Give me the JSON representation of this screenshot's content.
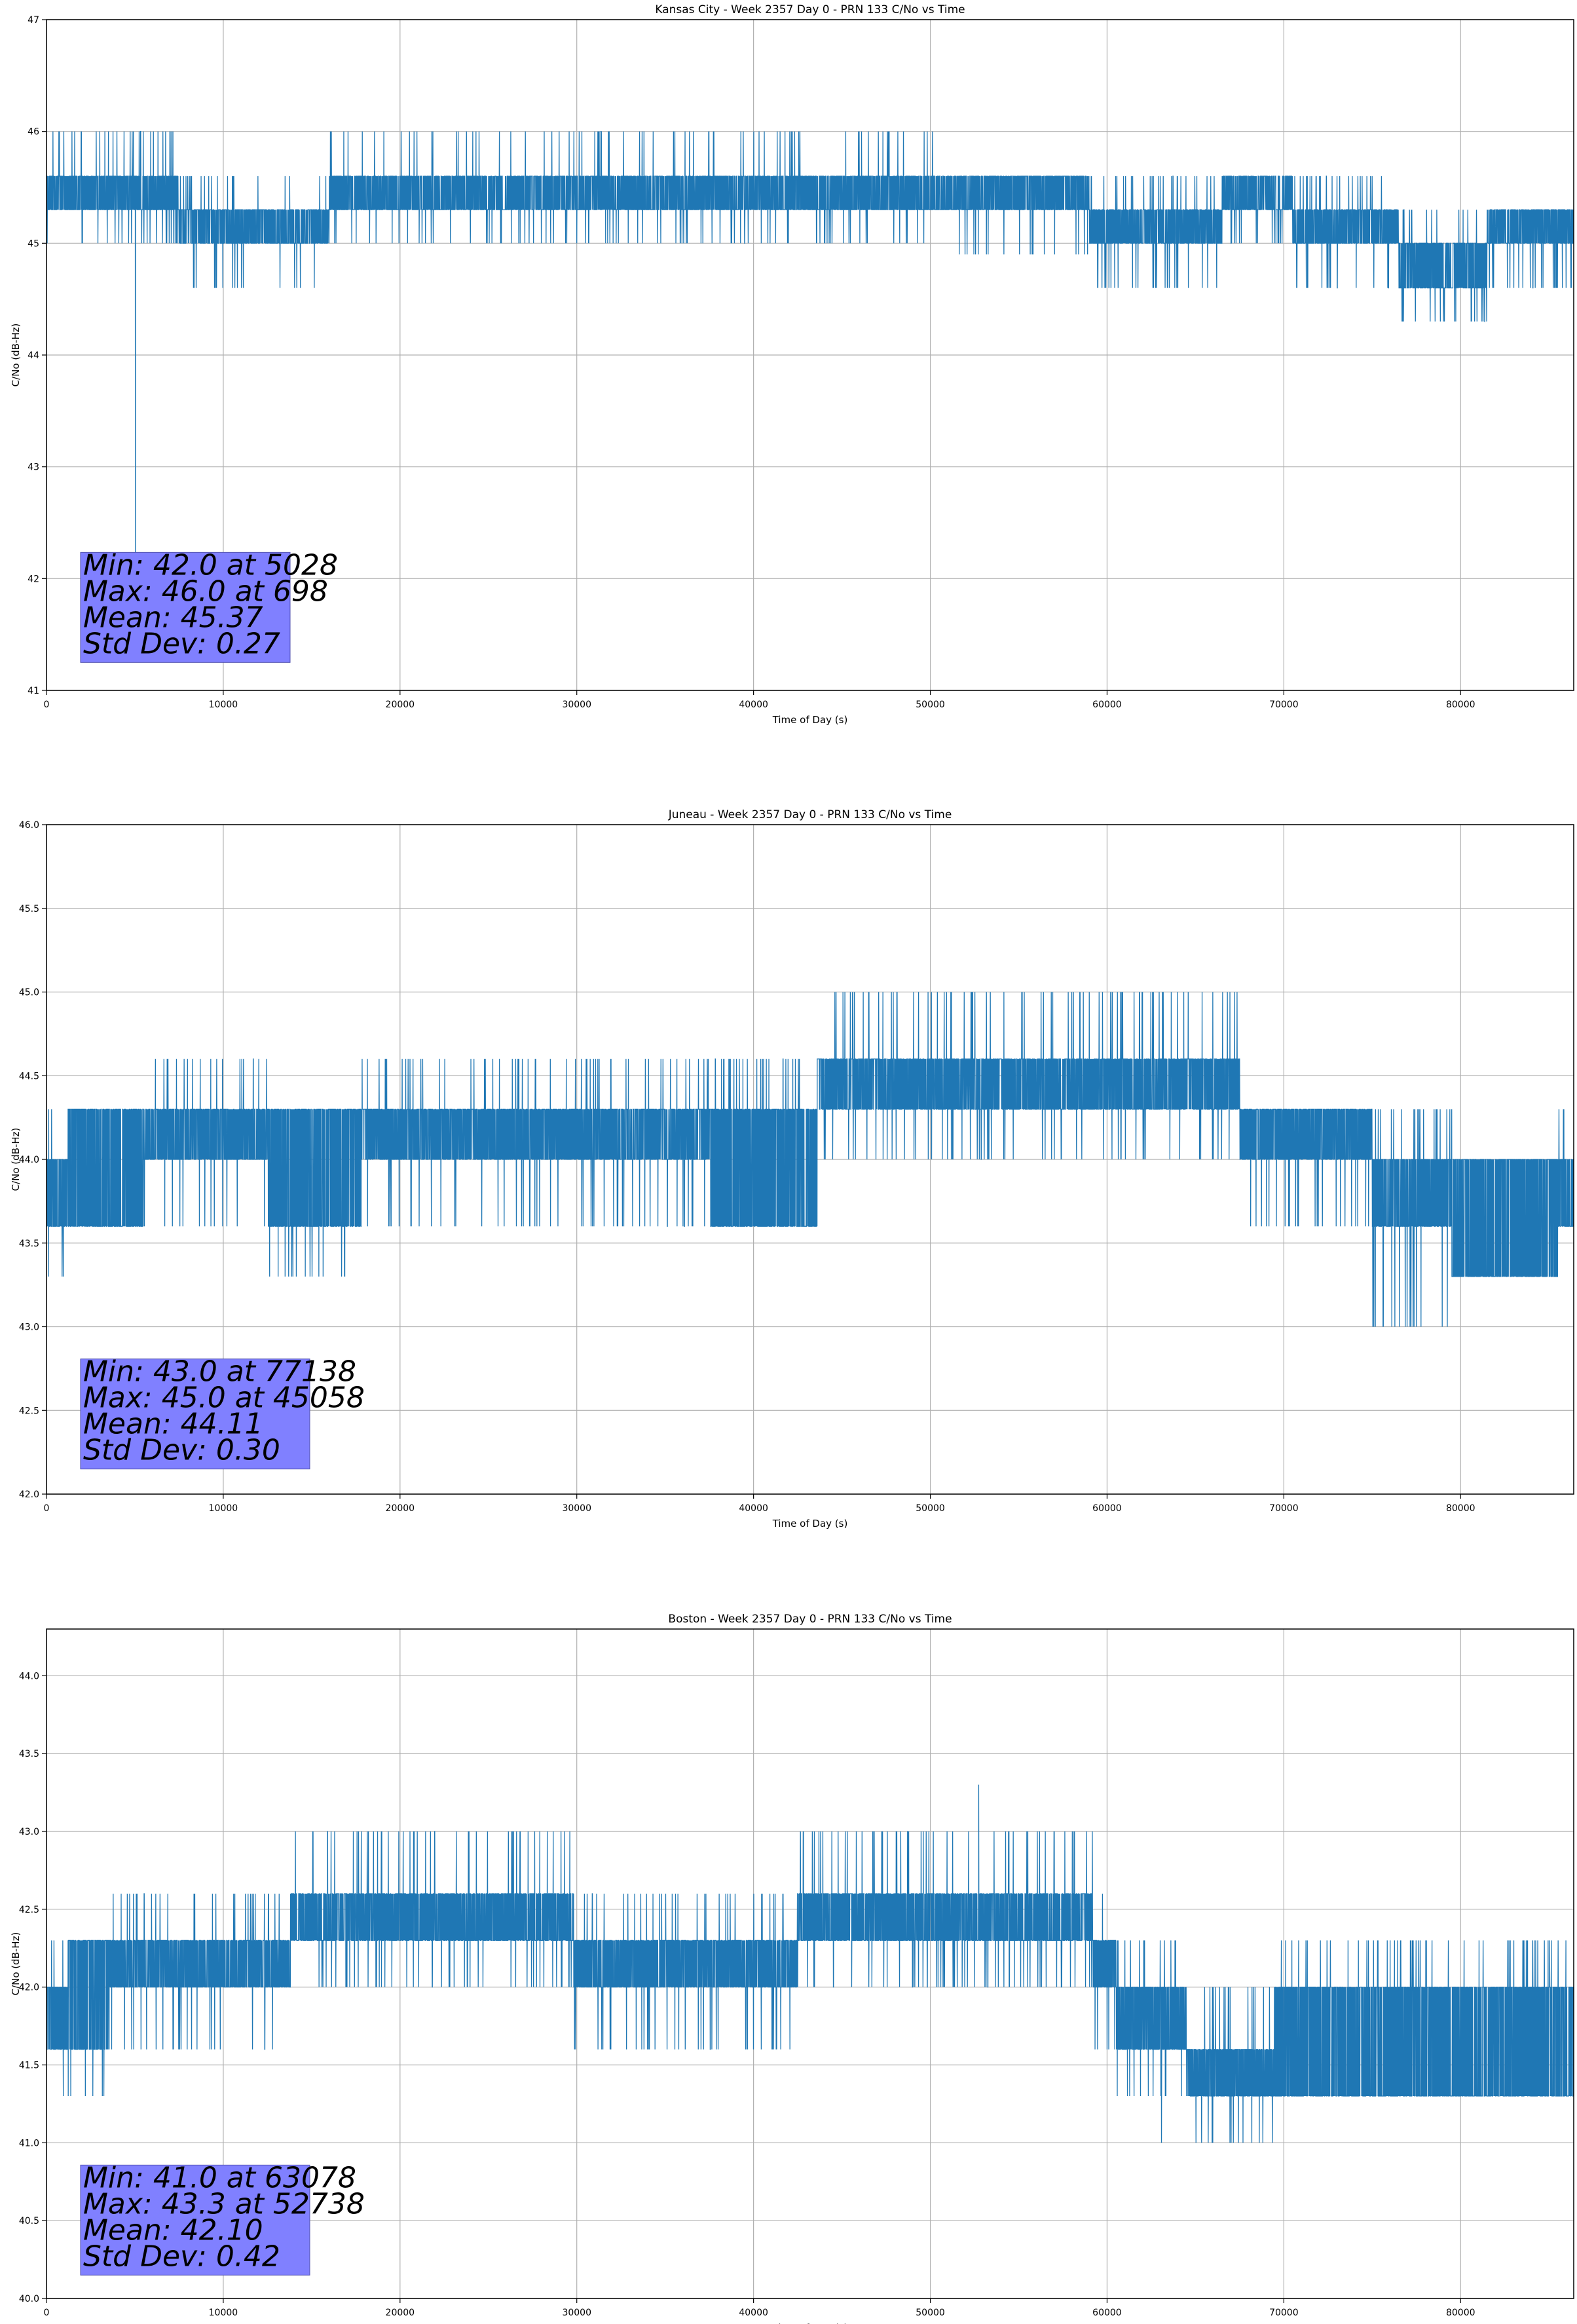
{
  "chart_data": [
    {
      "type": "line",
      "title": "Kansas City - Week 2357 Day 0 - PRN 133 C/No vs Time",
      "xlabel": "Time of Day (s)",
      "ylabel": "C/No (dB-Hz)",
      "xlim": [
        0,
        86400
      ],
      "ylim": [
        41,
        47
      ],
      "xticks": [
        "0",
        "10000",
        "20000",
        "30000",
        "40000",
        "50000",
        "60000",
        "70000",
        "80000"
      ],
      "yticks": [
        "41",
        "42",
        "43",
        "44",
        "45",
        "46",
        "47"
      ],
      "grid": true,
      "line_color": "#1f77b4",
      "band_segments": [
        {
          "x": [
            0,
            7500
          ],
          "lo": 45.3,
          "hi": 45.6,
          "spike_lo": 45.0,
          "spike_hi": 46.0
        },
        {
          "x": [
            7500,
            16000
          ],
          "lo": 45.0,
          "hi": 45.3,
          "spike_lo": 44.6,
          "spike_hi": 45.6
        },
        {
          "x": [
            16000,
            33000
          ],
          "lo": 45.3,
          "hi": 45.6,
          "spike_lo": 45.0,
          "spike_hi": 46.0
        },
        {
          "x": [
            33000,
            50800
          ],
          "lo": 45.3,
          "hi": 45.6,
          "spike_lo": 45.0,
          "spike_hi": 46.0
        },
        {
          "x": [
            50800,
            59000
          ],
          "lo": 45.3,
          "hi": 45.6,
          "spike_lo": 44.9,
          "spike_hi": 45.6
        },
        {
          "x": [
            59000,
            66500
          ],
          "lo": 45.0,
          "hi": 45.3,
          "spike_lo": 44.6,
          "spike_hi": 45.6
        },
        {
          "x": [
            66500,
            70500
          ],
          "lo": 45.3,
          "hi": 45.6,
          "spike_lo": 45.0,
          "spike_hi": 45.6
        },
        {
          "x": [
            70500,
            76500
          ],
          "lo": 45.0,
          "hi": 45.3,
          "spike_lo": 44.6,
          "spike_hi": 45.6
        },
        {
          "x": [
            76500,
            81500
          ],
          "lo": 44.6,
          "hi": 45.0,
          "spike_lo": 44.3,
          "spike_hi": 45.3
        },
        {
          "x": [
            81500,
            86400
          ],
          "lo": 45.0,
          "hi": 45.3,
          "spike_lo": 44.6,
          "spike_hi": 45.3
        }
      ],
      "annotation": {
        "lines": [
          "Min: 42.0 at 5028",
          "Max: 46.0 at 698",
          "Mean: 45.37",
          "Std Dev: 0.27"
        ],
        "min": 42.0,
        "min_at": 5028,
        "max": 46.0,
        "max_at": 698,
        "mean": 45.37,
        "std": 0.27,
        "box_color": "#8080ff",
        "anchor": [
          2000,
          41.25
        ]
      }
    },
    {
      "type": "line",
      "title": "Juneau - Week 2357 Day 0 - PRN 133 C/No vs Time",
      "xlabel": "Time of Day (s)",
      "ylabel": "C/No (dB-Hz)",
      "xlim": [
        0,
        86400
      ],
      "ylim": [
        42.0,
        46.0
      ],
      "xticks": [
        "0",
        "10000",
        "20000",
        "30000",
        "40000",
        "50000",
        "60000",
        "70000",
        "80000"
      ],
      "yticks": [
        "42.0",
        "42.5",
        "43.0",
        "43.5",
        "44.0",
        "44.5",
        "45.0",
        "45.5",
        "46.0"
      ],
      "grid": true,
      "line_color": "#1f77b4",
      "band_segments": [
        {
          "x": [
            0,
            1200
          ],
          "lo": 43.6,
          "hi": 44.0,
          "spike_lo": 43.3,
          "spike_hi": 44.3
        },
        {
          "x": [
            1200,
            5500
          ],
          "lo": 43.6,
          "hi": 44.3,
          "spike_lo": 43.6,
          "spike_hi": 44.3
        },
        {
          "x": [
            5500,
            12500
          ],
          "lo": 44.0,
          "hi": 44.3,
          "spike_lo": 43.6,
          "spike_hi": 44.6
        },
        {
          "x": [
            12500,
            17800
          ],
          "lo": 43.6,
          "hi": 44.3,
          "spike_lo": 43.3,
          "spike_hi": 44.3
        },
        {
          "x": [
            17800,
            37500
          ],
          "lo": 44.0,
          "hi": 44.3,
          "spike_lo": 43.6,
          "spike_hi": 44.6
        },
        {
          "x": [
            37500,
            43600
          ],
          "lo": 43.6,
          "hi": 44.3,
          "spike_lo": 43.6,
          "spike_hi": 44.6
        },
        {
          "x": [
            43600,
            67500
          ],
          "lo": 44.3,
          "hi": 44.6,
          "spike_lo": 44.0,
          "spike_hi": 45.0
        },
        {
          "x": [
            67500,
            75000
          ],
          "lo": 44.0,
          "hi": 44.3,
          "spike_lo": 43.6,
          "spike_hi": 44.3
        },
        {
          "x": [
            75000,
            79500
          ],
          "lo": 43.6,
          "hi": 44.0,
          "spike_lo": 43.0,
          "spike_hi": 44.3
        },
        {
          "x": [
            79500,
            85500
          ],
          "lo": 43.3,
          "hi": 44.0,
          "spike_lo": 43.3,
          "spike_hi": 44.0
        },
        {
          "x": [
            85500,
            86400
          ],
          "lo": 43.6,
          "hi": 44.0,
          "spike_lo": 43.6,
          "spike_hi": 44.3
        }
      ],
      "annotation": {
        "lines": [
          "Min: 43.0 at 77138",
          "Max: 45.0 at 45058",
          "Mean: 44.11",
          "Std Dev: 0.30"
        ],
        "min": 43.0,
        "min_at": 77138,
        "max": 45.0,
        "max_at": 45058,
        "mean": 44.11,
        "std": 0.3,
        "box_color": "#8080ff",
        "anchor": [
          2000,
          42.15
        ]
      }
    },
    {
      "type": "line",
      "title": "Boston - Week 2357 Day 0 - PRN 133 C/No vs Time",
      "xlabel": "Time of Day (s)",
      "ylabel": "C/No (dB-Hz)",
      "xlim": [
        0,
        86400
      ],
      "ylim": [
        40.0,
        44.3
      ],
      "xticks": [
        "0",
        "10000",
        "20000",
        "30000",
        "40000",
        "50000",
        "60000",
        "70000",
        "80000"
      ],
      "yticks": [
        "40.0",
        "40.5",
        "41.0",
        "41.5",
        "42.0",
        "42.5",
        "43.0",
        "43.5",
        "44.0"
      ],
      "grid": true,
      "line_color": "#1f77b4",
      "band_segments": [
        {
          "x": [
            0,
            1200
          ],
          "lo": 41.6,
          "hi": 42.0,
          "spike_lo": 41.3,
          "spike_hi": 42.3
        },
        {
          "x": [
            1200,
            3500
          ],
          "lo": 41.6,
          "hi": 42.3,
          "spike_lo": 41.3,
          "spike_hi": 42.3
        },
        {
          "x": [
            3500,
            13800
          ],
          "lo": 42.0,
          "hi": 42.3,
          "spike_lo": 41.6,
          "spike_hi": 42.6
        },
        {
          "x": [
            13800,
            29800
          ],
          "lo": 42.3,
          "hi": 42.6,
          "spike_lo": 42.0,
          "spike_hi": 43.0
        },
        {
          "x": [
            29800,
            42500
          ],
          "lo": 42.0,
          "hi": 42.3,
          "spike_lo": 41.6,
          "spike_hi": 42.6
        },
        {
          "x": [
            42500,
            59200
          ],
          "lo": 42.3,
          "hi": 42.6,
          "spike_lo": 42.0,
          "spike_hi": 43.0
        },
        {
          "x": [
            59200,
            60500
          ],
          "lo": 42.0,
          "hi": 42.3,
          "spike_lo": 41.6,
          "spike_hi": 42.6
        },
        {
          "x": [
            60500,
            64500
          ],
          "lo": 41.6,
          "hi": 42.0,
          "spike_lo": 41.3,
          "spike_hi": 42.3
        },
        {
          "x": [
            64500,
            69500
          ],
          "lo": 41.3,
          "hi": 41.6,
          "spike_lo": 41.0,
          "spike_hi": 42.0
        },
        {
          "x": [
            69500,
            86400
          ],
          "lo": 41.3,
          "hi": 42.0,
          "spike_lo": 41.3,
          "spike_hi": 42.3
        }
      ],
      "annotation": {
        "lines": [
          "Min: 41.0 at 63078",
          "Max: 43.3 at 52738",
          "Mean: 42.10",
          "Std Dev: 0.42"
        ],
        "min": 41.0,
        "min_at": 63078,
        "max": 43.3,
        "max_at": 52738,
        "mean": 42.1,
        "std": 0.42,
        "box_color": "#8080ff",
        "anchor": [
          2000,
          40.15
        ]
      }
    }
  ]
}
